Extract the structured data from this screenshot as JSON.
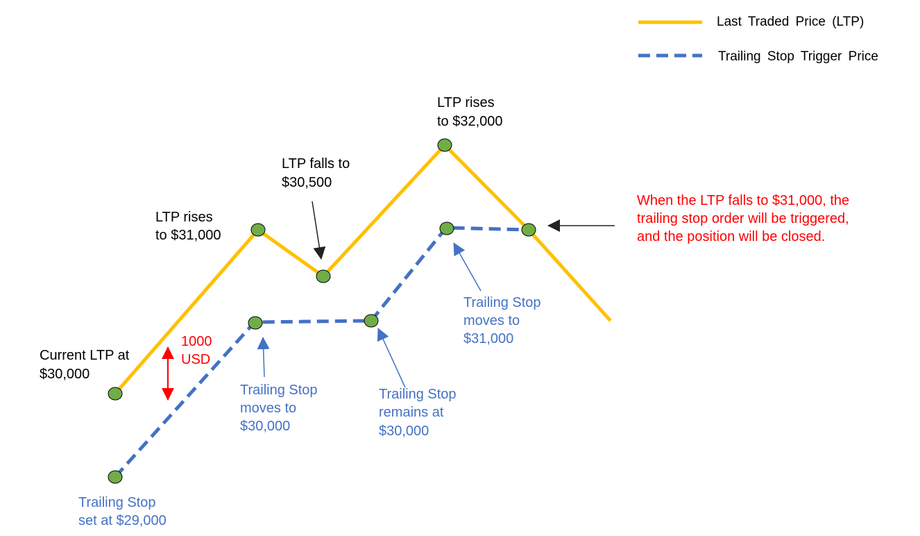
{
  "legend": {
    "ltp_label": "Last Traded Price (LTP)",
    "trailing_label": "Trailing Stop Trigger Price"
  },
  "colors": {
    "ltp_line": "#FFC000",
    "trailing_line": "#4472C4",
    "point_fill": "#70AD47",
    "annotation_red": "#FF0000",
    "annotation_blue": "#4472C4"
  },
  "series": {
    "ltp": [
      30000,
      31000,
      30500,
      32000,
      31000
    ],
    "trailing_stop": [
      29000,
      30000,
      30000,
      31000,
      31000
    ]
  },
  "annotations": {
    "current_ltp": [
      "Current LTP at",
      "$30,000"
    ],
    "ltp_rises_31000": [
      "LTP rises",
      "to $31,000"
    ],
    "ltp_falls_30500": [
      "LTP falls to",
      "$30,500"
    ],
    "ltp_rises_32000": [
      "LTP rises",
      "to $32,000"
    ],
    "trigger_note": [
      "When the LTP falls to $31,000, the",
      "trailing stop order will be triggered,",
      "and the position will be closed."
    ],
    "gap": [
      "1000",
      "USD"
    ],
    "ts_set": [
      "Trailing Stop",
      "set at $29,000"
    ],
    "ts_moves_30000": [
      "Trailing Stop",
      "moves to",
      "$30,000"
    ],
    "ts_remains_30000": [
      "Trailing Stop",
      "remains at",
      "$30,000"
    ],
    "ts_moves_31000": [
      "Trailing Stop",
      "moves to",
      "$31,000"
    ]
  }
}
